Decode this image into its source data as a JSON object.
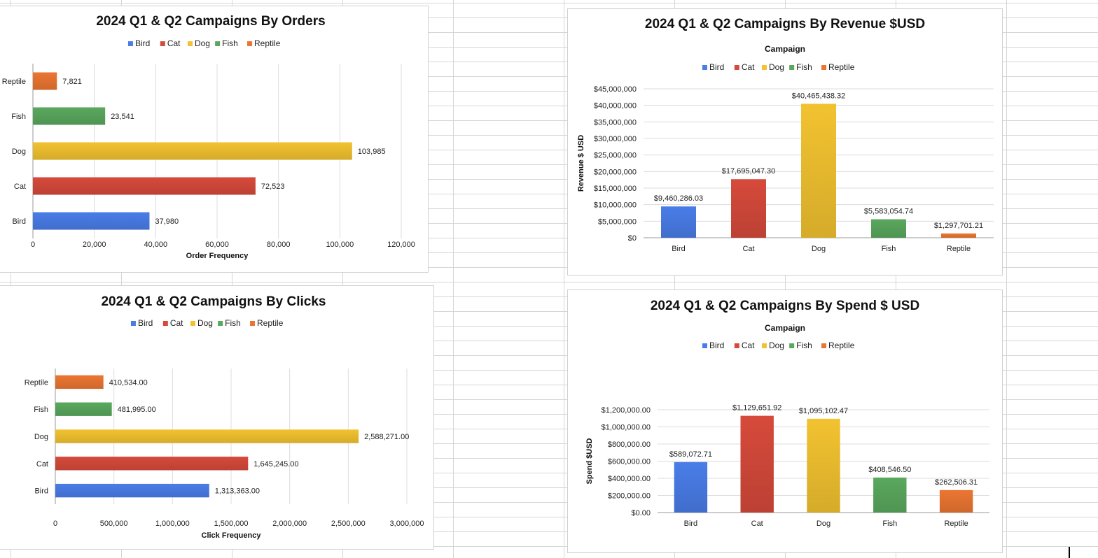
{
  "colors": {
    "Bird": "#4a7de8",
    "Cat": "#d64a3b",
    "Dog": "#f2c230",
    "Fish": "#5aa85e",
    "Reptile": "#eb7632"
  },
  "chart_data": [
    {
      "id": "orders",
      "type": "bar",
      "orientation": "horizontal",
      "title": "2024 Q1 & Q2 Campaigns By Orders",
      "subtitle": "",
      "legend": [
        "Bird",
        "Cat",
        "Dog",
        "Fish",
        "Reptile"
      ],
      "legend_position": "top",
      "categories": [
        "Bird",
        "Cat",
        "Dog",
        "Fish",
        "Reptile"
      ],
      "values": [
        37980,
        72523,
        103985,
        23541,
        7821
      ],
      "labels": [
        "37,980",
        "72,523",
        "103,985",
        "23,541",
        "7,821"
      ],
      "value_ticks": [
        "0",
        "20,000",
        "40,000",
        "60,000",
        "80,000",
        "100,000",
        "120,000"
      ],
      "value_axis_label": "Order Frequency",
      "category_axis_label": "",
      "range": [
        0,
        120000
      ],
      "grid": true
    },
    {
      "id": "revenue",
      "type": "bar",
      "orientation": "vertical",
      "title": "2024 Q1 & Q2 Campaigns By Revenue $USD",
      "subtitle": "Campaign",
      "legend": [
        "Bird",
        "Cat",
        "Dog",
        "Fish",
        "Reptile"
      ],
      "legend_position": "top",
      "categories": [
        "Bird",
        "Cat",
        "Dog",
        "Fish",
        "Reptile"
      ],
      "values": [
        9460286.03,
        17695047.3,
        40465438.32,
        5583054.74,
        1297701.21
      ],
      "labels": [
        "$9,460,286.03",
        "$17,695,047.30",
        "$40,465,438.32",
        "$5,583,054.74",
        "$1,297,701.21"
      ],
      "value_ticks": [
        "$0",
        "$5,000,000",
        "$10,000,000",
        "$15,000,000",
        "$20,000,000",
        "$25,000,000",
        "$30,000,000",
        "$35,000,000",
        "$40,000,000",
        "$45,000,000"
      ],
      "value_axis_label": "Revenue $ USD",
      "category_axis_label": "",
      "range": [
        0,
        45000000
      ],
      "grid": true
    },
    {
      "id": "clicks",
      "type": "bar",
      "orientation": "horizontal",
      "title": "2024 Q1 & Q2 Campaigns By Clicks",
      "subtitle": "",
      "legend": [
        "Bird",
        "Cat",
        "Dog",
        "Fish",
        "Reptile"
      ],
      "legend_position": "top",
      "categories": [
        "Bird",
        "Cat",
        "Dog",
        "Fish",
        "Reptile"
      ],
      "values": [
        1313363,
        1645245,
        2588271,
        481995,
        410534
      ],
      "labels": [
        "1,313,363.00",
        "1,645,245.00",
        "2,588,271.00",
        "481,995.00",
        "410,534.00"
      ],
      "value_ticks": [
        "0",
        "500,000",
        "1,000,000",
        "1,500,000",
        "2,000,000",
        "2,500,000",
        "3,000,000"
      ],
      "value_axis_label": "Click Frequency",
      "category_axis_label": "",
      "range": [
        0,
        3000000
      ],
      "grid": true
    },
    {
      "id": "spend",
      "type": "bar",
      "orientation": "vertical",
      "title": "2024 Q1 & Q2 Campaigns By Spend $ USD",
      "subtitle": "Campaign",
      "legend": [
        "Bird",
        "Cat",
        "Dog",
        "Fish",
        "Reptile"
      ],
      "legend_position": "top",
      "categories": [
        "Bird",
        "Cat",
        "Dog",
        "Fish",
        "Reptile"
      ],
      "values": [
        589072.71,
        1129651.92,
        1095102.47,
        408546.5,
        262506.31
      ],
      "labels": [
        "$589,072.71",
        "$1,129,651.92",
        "$1,095,102.47",
        "$408,546.50",
        "$262,506.31"
      ],
      "value_ticks": [
        "$0.00",
        "$200,000.00",
        "$400,000.00",
        "$600,000.00",
        "$800,000.00",
        "$1,000,000.00",
        "$1,200,000.00"
      ],
      "value_axis_label": "Spend $USD",
      "category_axis_label": "",
      "range": [
        0,
        1200000
      ],
      "grid": true
    }
  ]
}
